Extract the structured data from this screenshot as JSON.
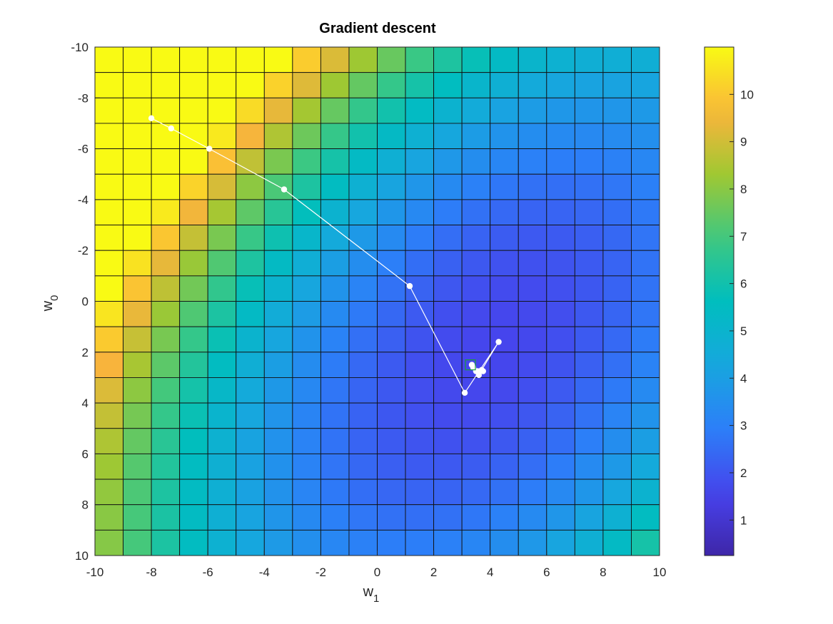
{
  "chart_data": {
    "type": "heatmap",
    "title": "Gradient descent",
    "xlabel": {
      "main": "w",
      "sub": "1"
    },
    "ylabel": {
      "main": "w",
      "sub": "0"
    },
    "xlim": [
      -10,
      10
    ],
    "ylim": [
      -10,
      10
    ],
    "y_reversed": true,
    "grid_cells": 20,
    "xticks": [
      -10,
      -8,
      -6,
      -4,
      -2,
      0,
      2,
      4,
      6,
      8,
      10
    ],
    "yticks": [
      -10,
      -8,
      -6,
      -4,
      -2,
      0,
      2,
      4,
      6,
      8,
      10
    ],
    "colorbar": {
      "range": [
        0.25,
        11.0
      ],
      "ticks": [
        1,
        2,
        3,
        4,
        5,
        6,
        7,
        8,
        9,
        10
      ],
      "colormap": "parula"
    },
    "surface": {
      "description_type": "quadratic",
      "center": {
        "w1": 4.0,
        "w0": 2.0
      },
      "base_value": 1.6,
      "coef_w1_sq": 0.045,
      "coef_w0_sq": 0.03,
      "coef_cross": 0.035
    },
    "path": {
      "color": "#ffffff",
      "points": [
        {
          "w1": -8.0,
          "w0": -7.2
        },
        {
          "w1": -7.3,
          "w0": -6.8
        },
        {
          "w1": -5.95,
          "w0": -6.0
        },
        {
          "w1": -3.3,
          "w0": -4.4
        },
        {
          "w1": 1.15,
          "w0": -0.6
        },
        {
          "w1": 3.1,
          "w0": 3.6
        },
        {
          "w1": 4.3,
          "w0": 1.6
        },
        {
          "w1": 3.7,
          "w0": 2.7
        },
        {
          "w1": 3.6,
          "w0": 2.9
        },
        {
          "w1": 3.75,
          "w0": 2.75
        },
        {
          "w1": 3.55,
          "w0": 2.75
        },
        {
          "w1": 3.4,
          "w0": 2.6
        },
        {
          "w1": 3.5,
          "w0": 2.75
        },
        {
          "w1": 3.35,
          "w0": 2.5
        }
      ]
    },
    "minimum_marker": {
      "w1": 3.3,
      "w0": 2.5,
      "color": "#1aa038"
    }
  }
}
